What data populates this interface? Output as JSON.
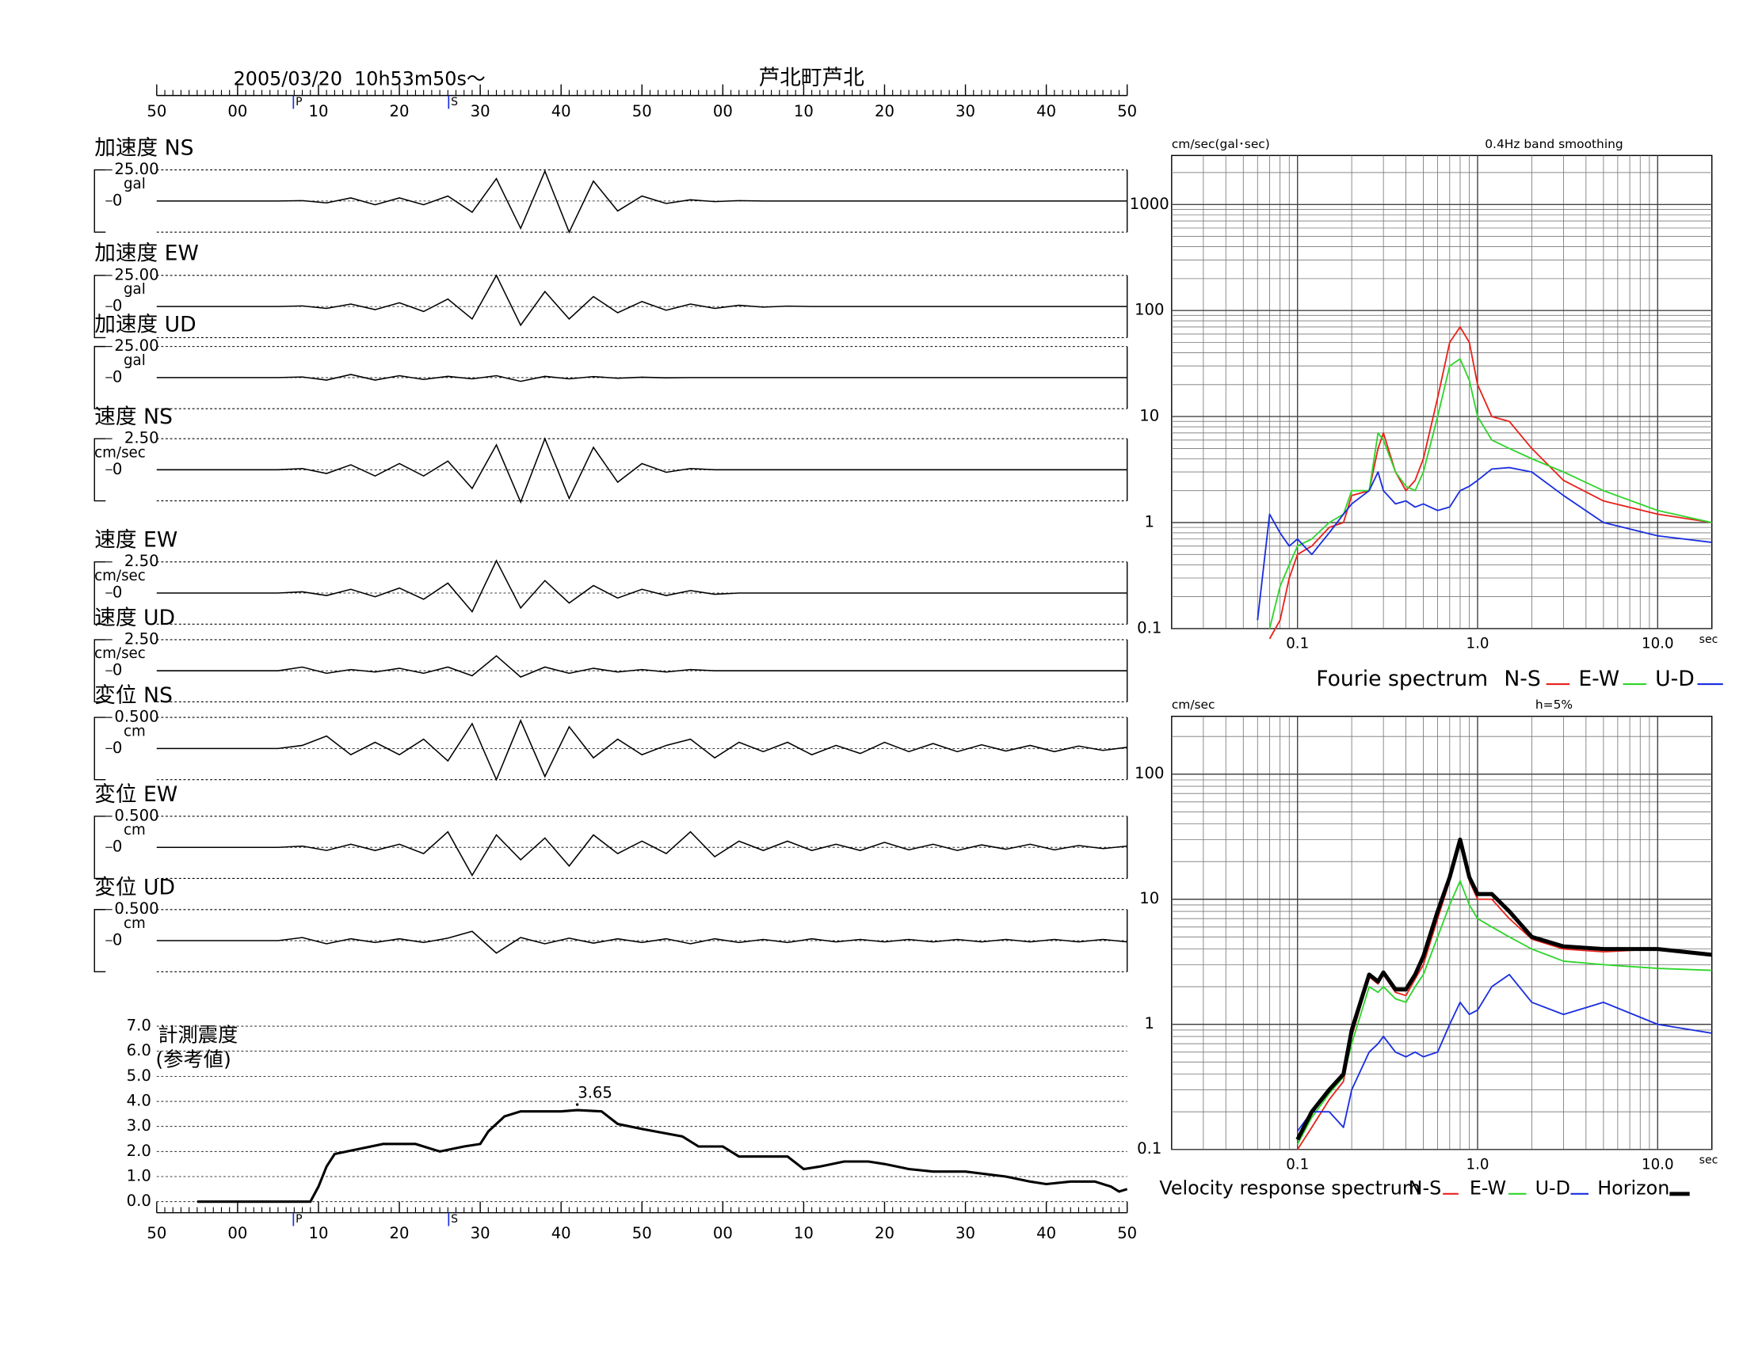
{
  "chart_data": [
    {
      "type": "waveforms",
      "title": "2005/03/20  10h53m50s〜",
      "station": "芦北町芦北",
      "xlim": [
        0,
        120
      ],
      "xticks": [
        {
          "value": 0,
          "label": "50"
        },
        {
          "value": 10,
          "label": "00"
        },
        {
          "value": 20,
          "label": "10"
        },
        {
          "value": 30,
          "label": "20"
        },
        {
          "value": 40,
          "label": "30"
        },
        {
          "value": 50,
          "label": "40"
        },
        {
          "value": 60,
          "label": "50"
        },
        {
          "value": 70,
          "label": "00"
        },
        {
          "value": 80,
          "label": "10"
        },
        {
          "value": 90,
          "label": "20"
        },
        {
          "value": 100,
          "label": "30"
        },
        {
          "value": 110,
          "label": "40"
        },
        {
          "value": 120,
          "label": "50"
        }
      ],
      "phases": [
        {
          "label": "P",
          "t": 16.9
        },
        {
          "label": "S",
          "t": 36.1
        }
      ],
      "x": [
        0,
        3,
        6,
        9,
        12,
        15,
        18,
        21,
        24,
        27,
        30,
        33,
        36,
        39,
        42,
        45,
        48,
        51,
        54,
        57,
        60,
        63,
        66,
        69,
        72,
        75,
        78,
        81,
        84,
        87,
        90,
        93,
        96,
        99,
        102,
        105,
        108,
        111,
        114,
        117,
        120
      ],
      "panels": [
        {
          "title": "加速度 NS",
          "unit": "gal",
          "ylim": [
            -25,
            25
          ],
          "yticks": [
            0,
            {
              "value": 25,
              "label": "25.00"
            }
          ],
          "values": [
            0,
            0,
            0,
            0,
            0,
            0,
            0.3,
            -1.5,
            2.5,
            -3,
            2.5,
            -3,
            4,
            -9,
            18,
            -22,
            24,
            -25,
            16,
            -8,
            4,
            -2,
            1,
            -0.5,
            0.3,
            0,
            0,
            0,
            0,
            0,
            0,
            0,
            0,
            0,
            0,
            0,
            0,
            0,
            0,
            0,
            0
          ]
        },
        {
          "title": "加速度 EW",
          "unit": "gal",
          "ylim": [
            -25,
            25
          ],
          "yticks": [
            0,
            {
              "value": 25,
              "label": "25.00"
            }
          ],
          "values": [
            0,
            0,
            0,
            0,
            0,
            0,
            0.5,
            -1.5,
            2,
            -2.5,
            3,
            -4,
            6,
            -10,
            25,
            -15,
            12,
            -10,
            8,
            -5,
            4,
            -3,
            2,
            -1.5,
            1,
            -0.5,
            0.3,
            0,
            0,
            0,
            0,
            0,
            0,
            0,
            0,
            0,
            0,
            0,
            0,
            0,
            0
          ]
        },
        {
          "title": "加速度 UD",
          "unit": "gal",
          "ylim": [
            -25,
            25
          ],
          "yticks": [
            0,
            {
              "value": 25,
              "label": "25.00"
            }
          ],
          "values": [
            0,
            0,
            0,
            0,
            0,
            0,
            0.5,
            -2,
            2.5,
            -2,
            1.5,
            -1.5,
            1,
            -1,
            1.5,
            -3,
            1,
            -1,
            0.8,
            -0.5,
            0.3,
            -0.2,
            0,
            0,
            0,
            0,
            0,
            0,
            0,
            0,
            0,
            0,
            0,
            0,
            0,
            0,
            0,
            0,
            0,
            0,
            0
          ]
        },
        {
          "title": "速度 NS",
          "unit": "cm/sec",
          "ylim": [
            -2.5,
            2.5
          ],
          "yticks": [
            0,
            {
              "value": 2.5,
              "label": "2.50"
            }
          ],
          "values": [
            0,
            0,
            0,
            0,
            0,
            0,
            0.1,
            -0.3,
            0.4,
            -0.5,
            0.5,
            -0.5,
            0.7,
            -1.5,
            2,
            -2.6,
            2.5,
            -2.3,
            1.8,
            -1,
            0.5,
            -0.2,
            0.1,
            0,
            0,
            0,
            0,
            0,
            0,
            0,
            0,
            0,
            0,
            0,
            0,
            0,
            0,
            0,
            0,
            0,
            0
          ]
        },
        {
          "title": "速度 EW",
          "unit": "cm/sec",
          "ylim": [
            -2.5,
            2.5
          ],
          "yticks": [
            0,
            {
              "value": 2.5,
              "label": "2.50"
            }
          ],
          "values": [
            0,
            0,
            0,
            0,
            0,
            0,
            0.1,
            -0.2,
            0.3,
            -0.3,
            0.4,
            -0.5,
            0.8,
            -1.5,
            2.6,
            -1.2,
            1,
            -0.8,
            0.6,
            -0.4,
            0.3,
            -0.2,
            0.2,
            -0.1,
            0,
            0,
            0,
            0,
            0,
            0,
            0,
            0,
            0,
            0,
            0,
            0,
            0,
            0,
            0,
            0,
            0
          ]
        },
        {
          "title": "速度 UD",
          "unit": "cm/sec",
          "ylim": [
            -2.5,
            2.5
          ],
          "yticks": [
            0,
            {
              "value": 2.5,
              "label": "2.50"
            }
          ],
          "values": [
            0,
            0,
            0,
            0,
            0,
            0,
            0.3,
            -0.2,
            0.1,
            -0.1,
            0.2,
            -0.2,
            0.3,
            -0.4,
            1.2,
            -0.5,
            0.3,
            -0.2,
            0.2,
            -0.1,
            0.1,
            -0.1,
            0.1,
            0,
            0,
            0,
            0,
            0,
            0,
            0,
            0,
            0,
            0,
            0,
            0,
            0,
            0,
            0,
            0,
            0,
            0
          ]
        },
        {
          "title": "変位 NS",
          "unit": "cm",
          "ylim": [
            -0.5,
            0.5
          ],
          "yticks": [
            0,
            {
              "value": 0.5,
              "label": "0.500"
            }
          ],
          "values": [
            0,
            0,
            0,
            0,
            0,
            0,
            0.05,
            0.2,
            -0.1,
            0.1,
            -0.1,
            0.15,
            -0.2,
            0.4,
            -0.5,
            0.45,
            -0.45,
            0.35,
            -0.15,
            0.15,
            -0.1,
            0.05,
            0.15,
            -0.15,
            0.1,
            -0.05,
            0.1,
            -0.1,
            0.05,
            -0.08,
            0.1,
            -0.05,
            0.08,
            -0.05,
            0.06,
            -0.04,
            0.05,
            -0.05,
            0.04,
            -0.03,
            0.02
          ]
        },
        {
          "title": "変位 EW",
          "unit": "cm",
          "ylim": [
            -0.5,
            0.5
          ],
          "yticks": [
            0,
            {
              "value": 0.5,
              "label": "0.500"
            }
          ],
          "values": [
            0,
            0,
            0,
            0,
            0,
            0,
            0.02,
            -0.05,
            0.05,
            -0.05,
            0.05,
            -0.1,
            0.25,
            -0.45,
            0.2,
            -0.2,
            0.15,
            -0.3,
            0.2,
            -0.1,
            0.1,
            -0.1,
            0.25,
            -0.15,
            0.1,
            -0.05,
            0.1,
            -0.05,
            0.05,
            -0.05,
            0.08,
            -0.04,
            0.05,
            -0.05,
            0.04,
            -0.03,
            0.05,
            -0.04,
            0.03,
            -0.02,
            0.02
          ]
        },
        {
          "title": "変位 UD",
          "unit": "cm",
          "ylim": [
            -0.5,
            0.5
          ],
          "yticks": [
            0,
            {
              "value": 0.5,
              "label": "0.500"
            }
          ],
          "values": [
            0,
            0,
            0,
            0,
            0,
            0,
            0.05,
            -0.05,
            0.03,
            -0.03,
            0.03,
            -0.03,
            0.04,
            0.15,
            -0.2,
            0.05,
            -0.05,
            0.04,
            -0.04,
            0.03,
            -0.03,
            0.03,
            -0.05,
            0.03,
            -0.03,
            0.02,
            -0.03,
            0.03,
            -0.02,
            0.02,
            -0.02,
            0.02,
            -0.02,
            0.02,
            -0.02,
            0.02,
            -0.02,
            0.02,
            -0.02,
            0.02,
            -0.02
          ]
        }
      ]
    },
    {
      "type": "line",
      "title": "計測震度",
      "subtitle": "(参考値)",
      "label_max": true,
      "grid": true,
      "color": "#000000",
      "ylim": [
        0,
        7
      ],
      "yticks": [
        {
          "value": 0,
          "label": "0.0"
        },
        {
          "value": 1,
          "label": "1.0"
        },
        {
          "value": 2,
          "label": "2.0"
        },
        {
          "value": 3,
          "label": "3.0"
        },
        {
          "value": 4,
          "label": "4.0"
        },
        {
          "value": 5,
          "label": "5.0"
        },
        {
          "value": 6,
          "label": "6.0"
        },
        {
          "value": 7,
          "label": "7.0"
        }
      ],
      "x": [
        5,
        19,
        20,
        21,
        22,
        25,
        28,
        32,
        35,
        38,
        40,
        41,
        43,
        45,
        50,
        52,
        55,
        57,
        60,
        65,
        67,
        70,
        72,
        75,
        78,
        80,
        82,
        85,
        88,
        90,
        93,
        96,
        100,
        105,
        108,
        110,
        113,
        116,
        118,
        119,
        120
      ],
      "values": [
        0,
        0,
        0.6,
        1.4,
        1.9,
        2.1,
        2.3,
        2.3,
        2.0,
        2.2,
        2.3,
        2.8,
        3.4,
        3.6,
        3.6,
        3.65,
        3.6,
        3.1,
        2.9,
        2.6,
        2.2,
        2.2,
        1.8,
        1.8,
        1.8,
        1.3,
        1.4,
        1.6,
        1.6,
        1.5,
        1.3,
        1.2,
        1.2,
        1.0,
        0.8,
        0.7,
        0.8,
        0.8,
        0.6,
        0.4,
        0.5
      ]
    },
    {
      "type": "loglog",
      "ylabel": "cm/sec(gal･sec)",
      "note": "0.4Hz band smoothing",
      "xlabel": "sec",
      "legend_title": "Fourie spectrum",
      "log_x": true,
      "log_y": true,
      "grid": true,
      "xlim": [
        0.02,
        20
      ],
      "ylim": [
        0.1,
        2900
      ],
      "xticks": [
        0.1,
        {
          "value": 1,
          "label": "1.0"
        },
        {
          "value": 10,
          "label": "10.0"
        }
      ],
      "yticks": [
        0.1,
        1,
        10,
        100,
        1000
      ],
      "x": [
        0.06,
        0.07,
        0.08,
        0.09,
        0.1,
        0.12,
        0.15,
        0.18,
        0.2,
        0.25,
        0.28,
        0.3,
        0.35,
        0.4,
        0.45,
        0.5,
        0.6,
        0.7,
        0.8,
        0.9,
        1.0,
        1.2,
        1.5,
        2,
        3,
        5,
        10,
        20
      ],
      "series": [
        {
          "name": "N-S",
          "color": "#e8221b",
          "values": [
            null,
            0.08,
            0.12,
            0.3,
            0.5,
            0.6,
            0.9,
            1.0,
            1.8,
            2,
            5,
            7,
            3,
            2,
            2.5,
            4,
            15,
            50,
            70,
            50,
            20,
            10,
            9,
            5,
            2.5,
            1.6,
            1.2,
            1.0
          ]
        },
        {
          "name": "E-W",
          "color": "#2ed52a",
          "values": [
            null,
            0.1,
            0.25,
            0.4,
            0.6,
            0.7,
            1,
            1.2,
            2,
            2,
            7,
            6,
            3,
            2.2,
            2,
            3,
            10,
            30,
            35,
            22,
            10,
            6,
            5,
            4,
            3,
            2,
            1.3,
            1.0
          ]
        },
        {
          "name": "U-D",
          "color": "#1a2ee0",
          "values": [
            0.12,
            1.2,
            0.8,
            0.6,
            0.7,
            0.5,
            0.8,
            1.2,
            1.5,
            2,
            3,
            2,
            1.5,
            1.6,
            1.4,
            1.5,
            1.3,
            1.4,
            2,
            2.2,
            2.5,
            3.2,
            3.3,
            3,
            1.8,
            1.0,
            0.75,
            0.65
          ]
        }
      ]
    },
    {
      "type": "loglog",
      "ylabel": "cm/sec",
      "note": "h=5%",
      "xlabel": "sec",
      "legend_title": "Velocity response spectrum",
      "log_x": true,
      "log_y": true,
      "grid": true,
      "xlim": [
        0.02,
        20
      ],
      "ylim": [
        0.1,
        290
      ],
      "xticks": [
        0.1,
        {
          "value": 1,
          "label": "1.0"
        },
        {
          "value": 10,
          "label": "10.0"
        }
      ],
      "yticks": [
        0.1,
        1,
        10,
        100
      ],
      "x": [
        0.1,
        0.12,
        0.15,
        0.18,
        0.2,
        0.25,
        0.28,
        0.3,
        0.35,
        0.4,
        0.45,
        0.5,
        0.6,
        0.7,
        0.8,
        0.9,
        1.0,
        1.2,
        1.5,
        2,
        3,
        5,
        10,
        20
      ],
      "series": [
        {
          "name": "N-S",
          "color": "#e8221b",
          "values": [
            0.1,
            0.15,
            0.25,
            0.35,
            0.8,
            2.4,
            2.1,
            2.5,
            1.8,
            1.7,
            2.3,
            3,
            7,
            14,
            28,
            14,
            10,
            10,
            7,
            4.8,
            4,
            3.8,
            4,
            3.6
          ]
        },
        {
          "name": "E-W",
          "color": "#2ed52a",
          "values": [
            0.11,
            0.18,
            0.28,
            0.38,
            0.7,
            2,
            1.8,
            2,
            1.6,
            1.5,
            2,
            2.5,
            5,
            9,
            14,
            9,
            7,
            6,
            5,
            4,
            3.2,
            3,
            2.8,
            2.7
          ]
        },
        {
          "name": "U-D",
          "color": "#1a2ee0",
          "values": [
            0.14,
            0.2,
            0.2,
            0.15,
            0.3,
            0.6,
            0.7,
            0.8,
            0.6,
            0.55,
            0.6,
            0.55,
            0.6,
            1,
            1.5,
            1.2,
            1.3,
            2,
            2.5,
            1.5,
            1.2,
            1.5,
            1.0,
            0.85
          ]
        },
        {
          "name": "Horizon",
          "color": "#000000",
          "values": [
            0.12,
            0.2,
            0.3,
            0.4,
            0.9,
            2.5,
            2.2,
            2.6,
            1.9,
            1.9,
            2.5,
            3.5,
            8,
            15,
            30,
            15,
            11,
            11,
            8,
            5,
            4.2,
            4,
            4,
            3.6
          ]
        }
      ]
    }
  ]
}
